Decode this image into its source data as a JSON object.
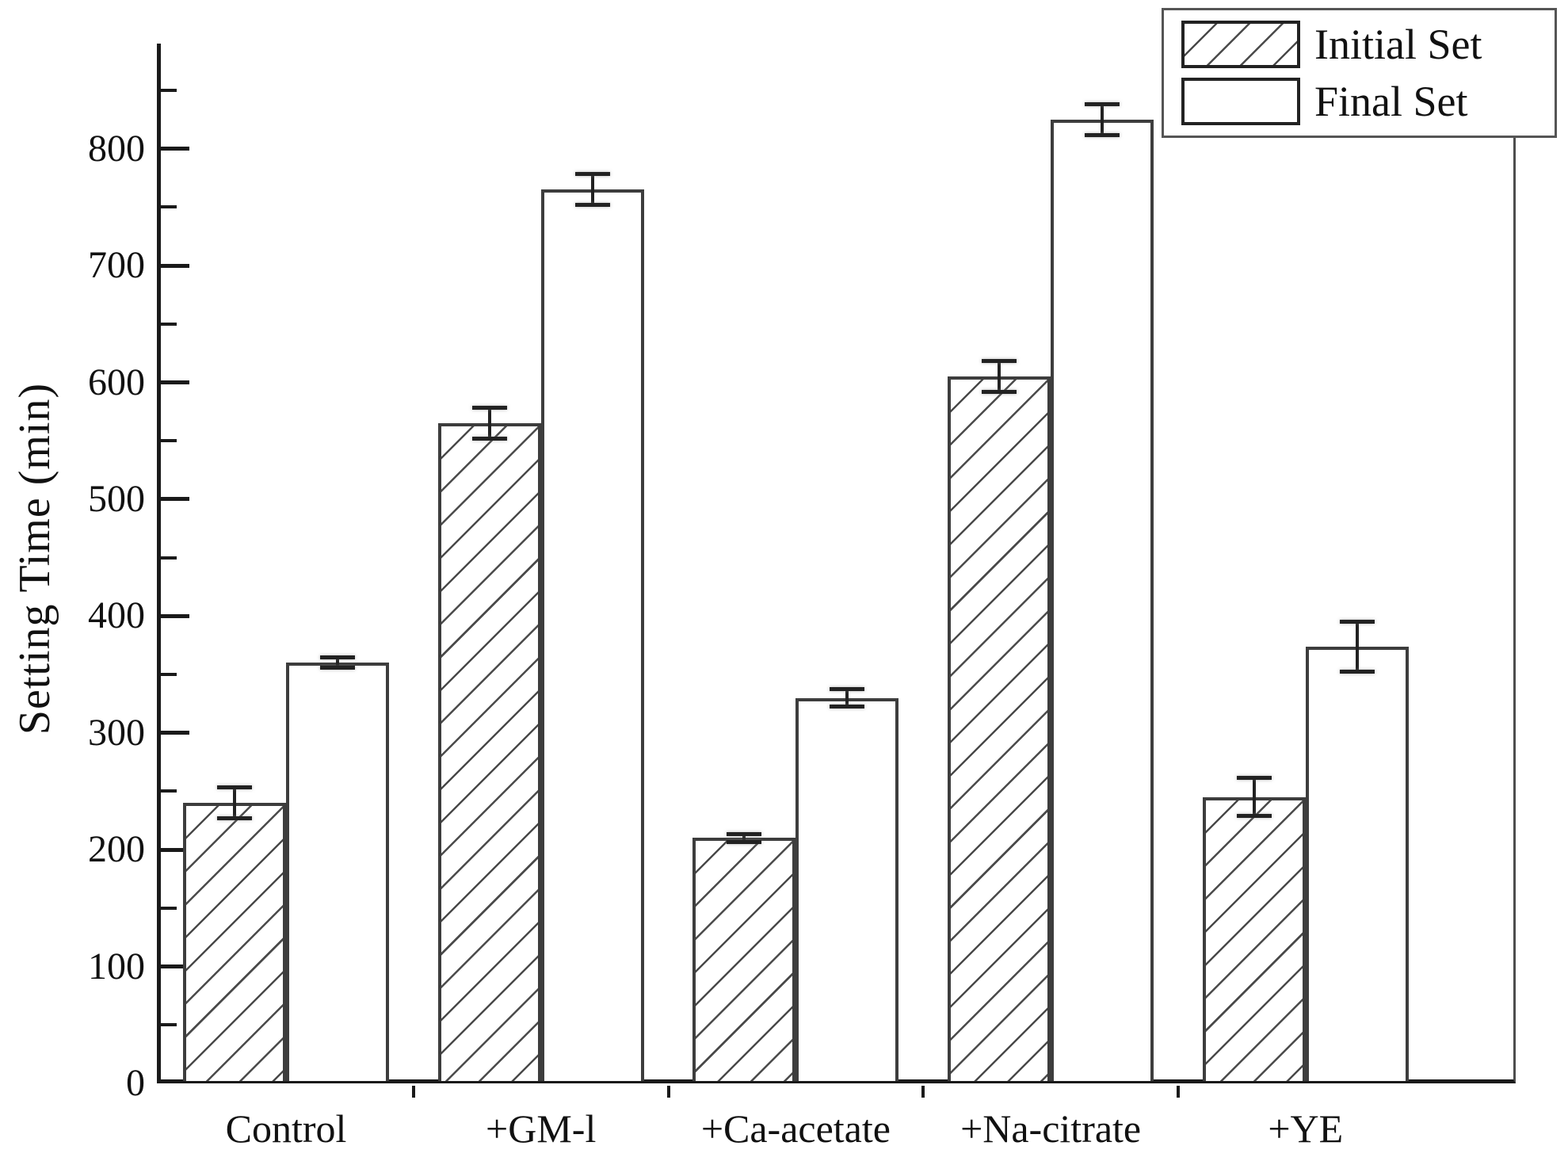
{
  "chart_data": {
    "type": "bar",
    "title": "",
    "xlabel": "",
    "ylabel": "Setting Time (min)",
    "ylim": [
      0,
      890
    ],
    "y_major_tick_step": 100,
    "y_minor_tick_step": 50,
    "y_tick_labels": [
      "0",
      "100",
      "200",
      "300",
      "400",
      "500",
      "600",
      "700",
      "800"
    ],
    "categories": [
      "Control",
      "+GM-l",
      "+Ca-acetate",
      "+Na-citrate",
      "+YE"
    ],
    "series": [
      {
        "name": "Initial Set",
        "pattern": "diagonal-hatch",
        "values": [
          240,
          565,
          210,
          605,
          245
        ],
        "errors": [
          15,
          15,
          5,
          15,
          18
        ]
      },
      {
        "name": "Final Set",
        "pattern": "plain-white",
        "values": [
          360,
          765,
          330,
          825,
          374
        ],
        "errors": [
          6,
          15,
          9,
          15,
          23
        ]
      }
    ],
    "legend_position": "top-right",
    "grid": false,
    "colors": {
      "axis": "#1a1a1a",
      "bar_border": "#3d3d3d",
      "hatch_line": "#4a4a4a",
      "error_bar": "#222222",
      "background": "#ffffff"
    }
  }
}
